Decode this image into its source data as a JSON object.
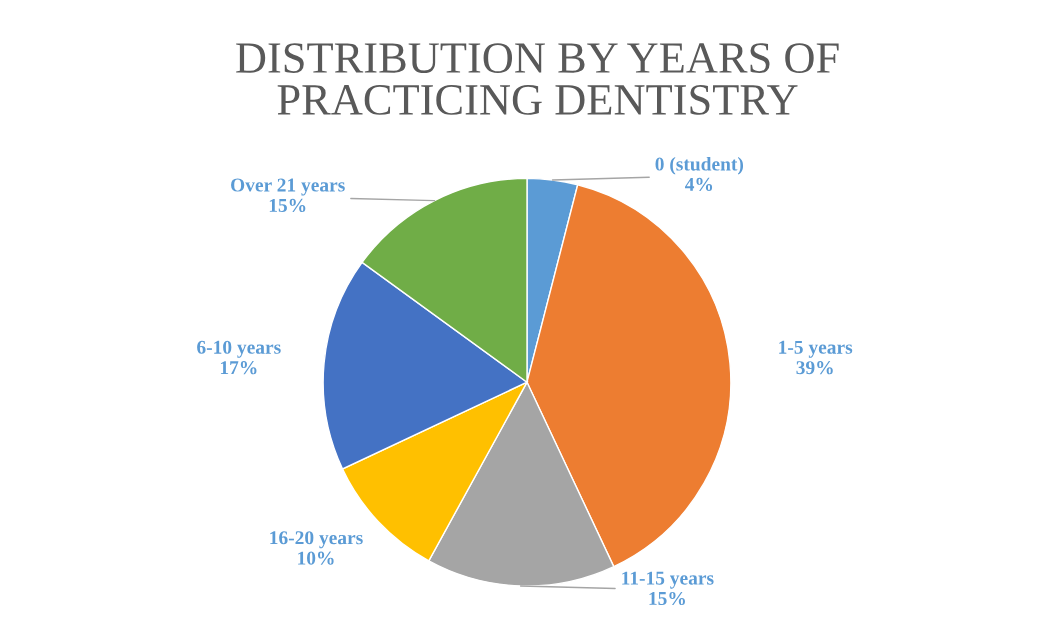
{
  "chart_data": {
    "type": "pie",
    "title": "DISTRIBUTION BY YEARS OF\nPRACTICING DENTISTRY",
    "categories": [
      "0 (student)",
      "1-5 years",
      "11-15 years",
      "16-20 years",
      "6-10 years",
      "Over 21 years"
    ],
    "values": [
      4,
      39,
      15,
      10,
      17,
      15
    ],
    "value_labels": [
      "4%",
      "39%",
      "15%",
      "10%",
      "17%",
      "15%"
    ],
    "colors": [
      "#5b9bd5",
      "#ed7d31",
      "#a5a5a5",
      "#ffc000",
      "#4472c4",
      "#70ad47"
    ],
    "legend": false
  }
}
